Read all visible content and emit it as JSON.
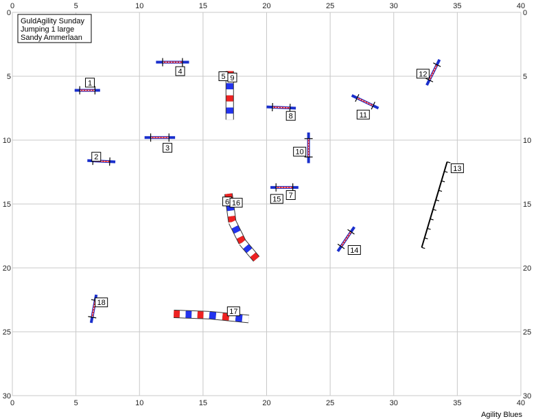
{
  "info_box": {
    "line1": "GuldAgility Sunday",
    "line2": "Jumping 1 large",
    "line3": "Sandy Ammerlaan"
  },
  "footer": {
    "brand": "Agility Blues"
  },
  "axis": {
    "x_range": [
      0,
      40
    ],
    "y_range": [
      0,
      30
    ],
    "x_ticks": [
      0,
      5,
      10,
      15,
      20,
      25,
      30,
      35,
      40
    ],
    "y_ticks": [
      0,
      5,
      10,
      15,
      20,
      25,
      30
    ],
    "grid": true
  },
  "colors": {
    "grid": "#c8c8c8",
    "bar_blue": "#1a2fcc",
    "bar_red": "#ee2020",
    "tunnel_blue": "#2233ee",
    "tunnel_red": "#ee2222",
    "wall": "#000000"
  },
  "obstacles": [
    {
      "number": "1",
      "type": "jump",
      "x1": 4.9,
      "y1": 6.1,
      "x2": 6.9,
      "y2": 6.1,
      "label_x": 6.1,
      "label_y": 5.5
    },
    {
      "number": "2",
      "type": "jump",
      "x1": 5.9,
      "y1": 11.6,
      "x2": 8.1,
      "y2": 11.7,
      "label_x": 6.6,
      "label_y": 11.3
    },
    {
      "number": "3",
      "type": "jump",
      "x1": 10.4,
      "y1": 9.8,
      "x2": 12.8,
      "y2": 9.8,
      "label_x": 12.2,
      "label_y": 10.6
    },
    {
      "number": "4",
      "type": "jump",
      "x1": 11.3,
      "y1": 3.9,
      "x2": 13.9,
      "y2": 3.9,
      "label_x": 13.2,
      "label_y": 4.6
    },
    {
      "number": "5",
      "type": "label",
      "label_x": 16.6,
      "label_y": 5.0
    },
    {
      "number": "6",
      "type": "label",
      "label_x": 16.9,
      "label_y": 14.8
    },
    {
      "number": "7",
      "type": "jump",
      "x1": 20.3,
      "y1": 13.7,
      "x2": 22.5,
      "y2": 13.7,
      "label_x": 21.9,
      "label_y": 14.3
    },
    {
      "number": "8",
      "type": "jump",
      "x1": 20.0,
      "y1": 7.4,
      "x2": 22.3,
      "y2": 7.5,
      "label_x": 21.9,
      "label_y": 8.1
    },
    {
      "number": "9",
      "type": "label",
      "label_x": 17.3,
      "label_y": 5.1
    },
    {
      "number": "10",
      "type": "jump",
      "x1": 23.3,
      "y1": 9.4,
      "x2": 23.3,
      "y2": 11.8,
      "label_x": 22.6,
      "label_y": 10.9
    },
    {
      "number": "11",
      "type": "jump",
      "x1": 26.7,
      "y1": 6.5,
      "x2": 28.8,
      "y2": 7.5,
      "label_x": 27.6,
      "label_y": 8.0
    },
    {
      "number": "12",
      "type": "jump",
      "x1": 32.6,
      "y1": 5.7,
      "x2": 33.6,
      "y2": 3.7,
      "label_x": 32.3,
      "label_y": 4.8
    },
    {
      "number": "13",
      "type": "wall",
      "x1": 32.2,
      "y1": 18.4,
      "x2": 34.2,
      "y2": 11.7,
      "label_x": 35.0,
      "label_y": 12.2
    },
    {
      "number": "14",
      "type": "jump",
      "x1": 25.6,
      "y1": 18.7,
      "x2": 26.9,
      "y2": 16.8,
      "label_x": 26.9,
      "label_y": 18.6
    },
    {
      "number": "15",
      "type": "label",
      "label_x": 20.8,
      "label_y": 14.6
    },
    {
      "number": "16",
      "type": "label",
      "label_x": 17.6,
      "label_y": 14.9
    },
    {
      "number": "17",
      "type": "label",
      "label_x": 17.4,
      "label_y": 23.4
    },
    {
      "number": "18",
      "type": "jump",
      "x1": 6.2,
      "y1": 24.3,
      "x2": 6.6,
      "y2": 22.1,
      "label_x": 7.0,
      "label_y": 22.7
    }
  ],
  "tunnels": [
    {
      "id": "tunnel-5-9",
      "points": [
        [
          17.1,
          4.6
        ],
        [
          17.1,
          8.4
        ]
      ]
    },
    {
      "id": "tunnel-6-16",
      "points": [
        [
          17.0,
          14.2
        ],
        [
          17.3,
          16.4
        ],
        [
          18.1,
          18.0
        ],
        [
          19.2,
          19.3
        ]
      ]
    },
    {
      "id": "tunnel-17",
      "points": [
        [
          12.7,
          23.6
        ],
        [
          15.5,
          23.7
        ],
        [
          18.6,
          24.0
        ]
      ]
    }
  ]
}
